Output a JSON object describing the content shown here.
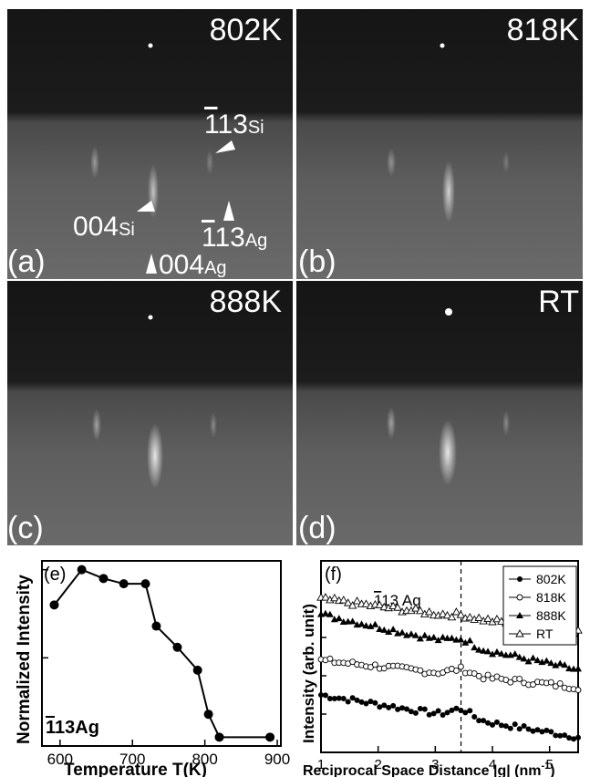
{
  "figure": {
    "panels": [
      {
        "id": "a",
        "label": "(a)",
        "temperature": "802K"
      },
      {
        "id": "b",
        "label": "(b)",
        "temperature": "818K"
      },
      {
        "id": "c",
        "label": "(c)",
        "temperature": "888K"
      },
      {
        "id": "d",
        "label": "(d)",
        "temperature": "RT"
      }
    ],
    "annotations": {
      "si113_bar": "1",
      "si113_rest": "13",
      "si113_sub": "Si",
      "si004_main": "004",
      "si004_sub": "Si",
      "ag113_bar": "1",
      "ag113_rest": "13",
      "ag113_sub": "Ag",
      "ag004_main": "004",
      "ag004_sub": "Ag"
    }
  },
  "chart_data": [
    {
      "panel_label": "(e)",
      "type": "line",
      "xlabel": "Temperature T(K)",
      "ylabel": "Normalized Intensity",
      "annotation_bar": "1",
      "annotation_rest": "13Ag",
      "xlim": [
        575,
        905
      ],
      "ylim": [
        0,
        1.05
      ],
      "xticks": [
        600,
        700,
        800,
        900
      ],
      "yticks": [
        0,
        0.5,
        1.0
      ],
      "series": [
        {
          "x": [
            592,
            630,
            660,
            688,
            718,
            733,
            762,
            790,
            805,
            820,
            890
          ],
          "y": [
            0.8,
            1.0,
            0.95,
            0.92,
            0.92,
            0.68,
            0.56,
            0.43,
            0.18,
            0.05,
            0.05
          ]
        }
      ]
    },
    {
      "panel_label": "(f)",
      "type": "scatter",
      "xlabel": "Reciprocal Space Distance |g| (nm",
      "xlabel_sup": "-1",
      "xlabel_end": ")",
      "ylabel": "Intensity (arb. unit)",
      "annotation_bar": "1",
      "annotation_rest": "13 Ag",
      "xlim": [
        1,
        5.5
      ],
      "ylim": [
        0,
        1
      ],
      "xticks": [
        1,
        2,
        3,
        4,
        5
      ],
      "dashed_line_x": 3.45,
      "legend_position": "top-right",
      "series": [
        {
          "name": "802K",
          "marker": "filled-circle",
          "start": 0.3,
          "end": 0.08,
          "bump": 0.045
        },
        {
          "name": "818K",
          "marker": "open-circle",
          "start": 0.48,
          "end": 0.34,
          "bump": 0.03
        },
        {
          "name": "888K",
          "marker": "filled-triangle",
          "start": 0.72,
          "end": 0.43,
          "bump": 0.03
        },
        {
          "name": "RT",
          "marker": "open-triangle",
          "start": 0.8,
          "end": 0.63,
          "bump": 0.01
        }
      ]
    }
  ]
}
